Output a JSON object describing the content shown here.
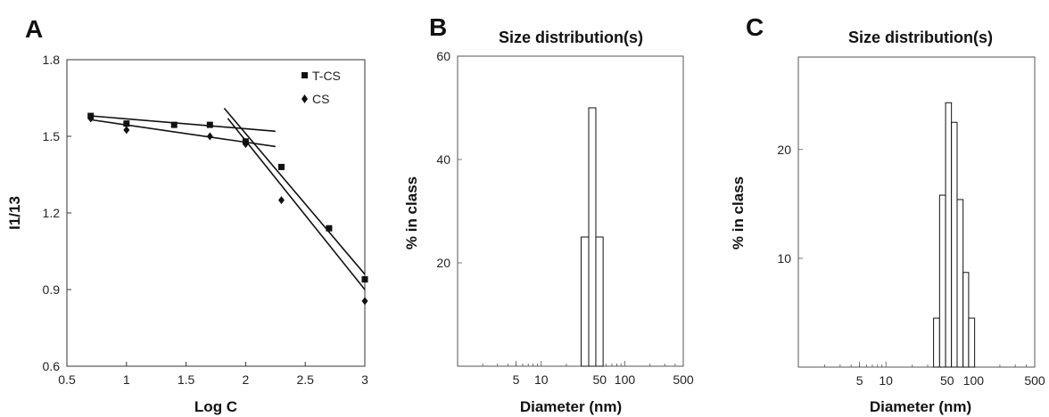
{
  "chart_data": [
    {
      "panel": "A",
      "type": "scatter",
      "title": "",
      "xlabel": "Log C",
      "ylabel": "I1/13",
      "xlim": [
        0.5,
        3
      ],
      "ylim": [
        0.6,
        1.8
      ],
      "xticks": [
        "0.5",
        "1",
        "1.5",
        "2",
        "2.5",
        "3"
      ],
      "yticks": [
        "0.6",
        "0.9",
        "1.2",
        "1.5",
        "1.8"
      ],
      "legend_position": "top-right",
      "series": [
        {
          "name": "T-CS",
          "marker": "square",
          "x": [
            0.7,
            1.0,
            1.4,
            1.7,
            2.0,
            2.3,
            2.7,
            3.0
          ],
          "y": [
            1.58,
            1.55,
            1.545,
            1.545,
            1.48,
            1.38,
            1.14,
            0.94
          ],
          "fit_lines": [
            [
              [
                0.7,
                1.58
              ],
              [
                2.25,
                1.52
              ]
            ],
            [
              [
                1.82,
                1.61
              ],
              [
                3.0,
                0.96
              ]
            ]
          ]
        },
        {
          "name": "CS",
          "marker": "diamond",
          "x": [
            0.7,
            1.0,
            1.7,
            2.0,
            2.3,
            3.0
          ],
          "y": [
            1.57,
            1.525,
            1.5,
            1.47,
            1.25,
            0.855
          ],
          "fit_lines": [
            [
              [
                0.7,
                1.565
              ],
              [
                2.25,
                1.46
              ]
            ],
            [
              [
                1.85,
                1.57
              ],
              [
                3.0,
                0.9
              ]
            ]
          ]
        }
      ]
    },
    {
      "panel": "B",
      "type": "bar",
      "title": "Size distribution(s)",
      "xlabel": "Diameter (nm)",
      "ylabel": "% in class",
      "xscale": "log",
      "xlim": [
        1,
        500
      ],
      "ylim": [
        0,
        60
      ],
      "xticks": [
        "5",
        "10",
        "50",
        "100",
        "500"
      ],
      "yticks": [
        "20",
        "40",
        "60"
      ],
      "bins": [
        {
          "from": 30,
          "to": 37,
          "value": 25
        },
        {
          "from": 37,
          "to": 45,
          "value": 50
        },
        {
          "from": 45,
          "to": 55,
          "value": 25
        }
      ]
    },
    {
      "panel": "C",
      "type": "bar",
      "title": "Size distribution(s)",
      "xlabel": "Diameter (nm)",
      "ylabel": "% in class",
      "xscale": "log",
      "xlim": [
        1,
        500
      ],
      "ylim": [
        0,
        28.5
      ],
      "xticks": [
        "5",
        "10",
        "50",
        "100",
        "500"
      ],
      "yticks": [
        "10",
        "20"
      ],
      "bins": [
        {
          "from": 35,
          "to": 41,
          "value": 4.5
        },
        {
          "from": 41,
          "to": 48,
          "value": 15.8
        },
        {
          "from": 48,
          "to": 56,
          "value": 24.3
        },
        {
          "from": 56,
          "to": 65,
          "value": 22.5
        },
        {
          "from": 65,
          "to": 76,
          "value": 15.4
        },
        {
          "from": 76,
          "to": 88,
          "value": 8.7
        },
        {
          "from": 88,
          "to": 103,
          "value": 4.5
        }
      ]
    }
  ]
}
